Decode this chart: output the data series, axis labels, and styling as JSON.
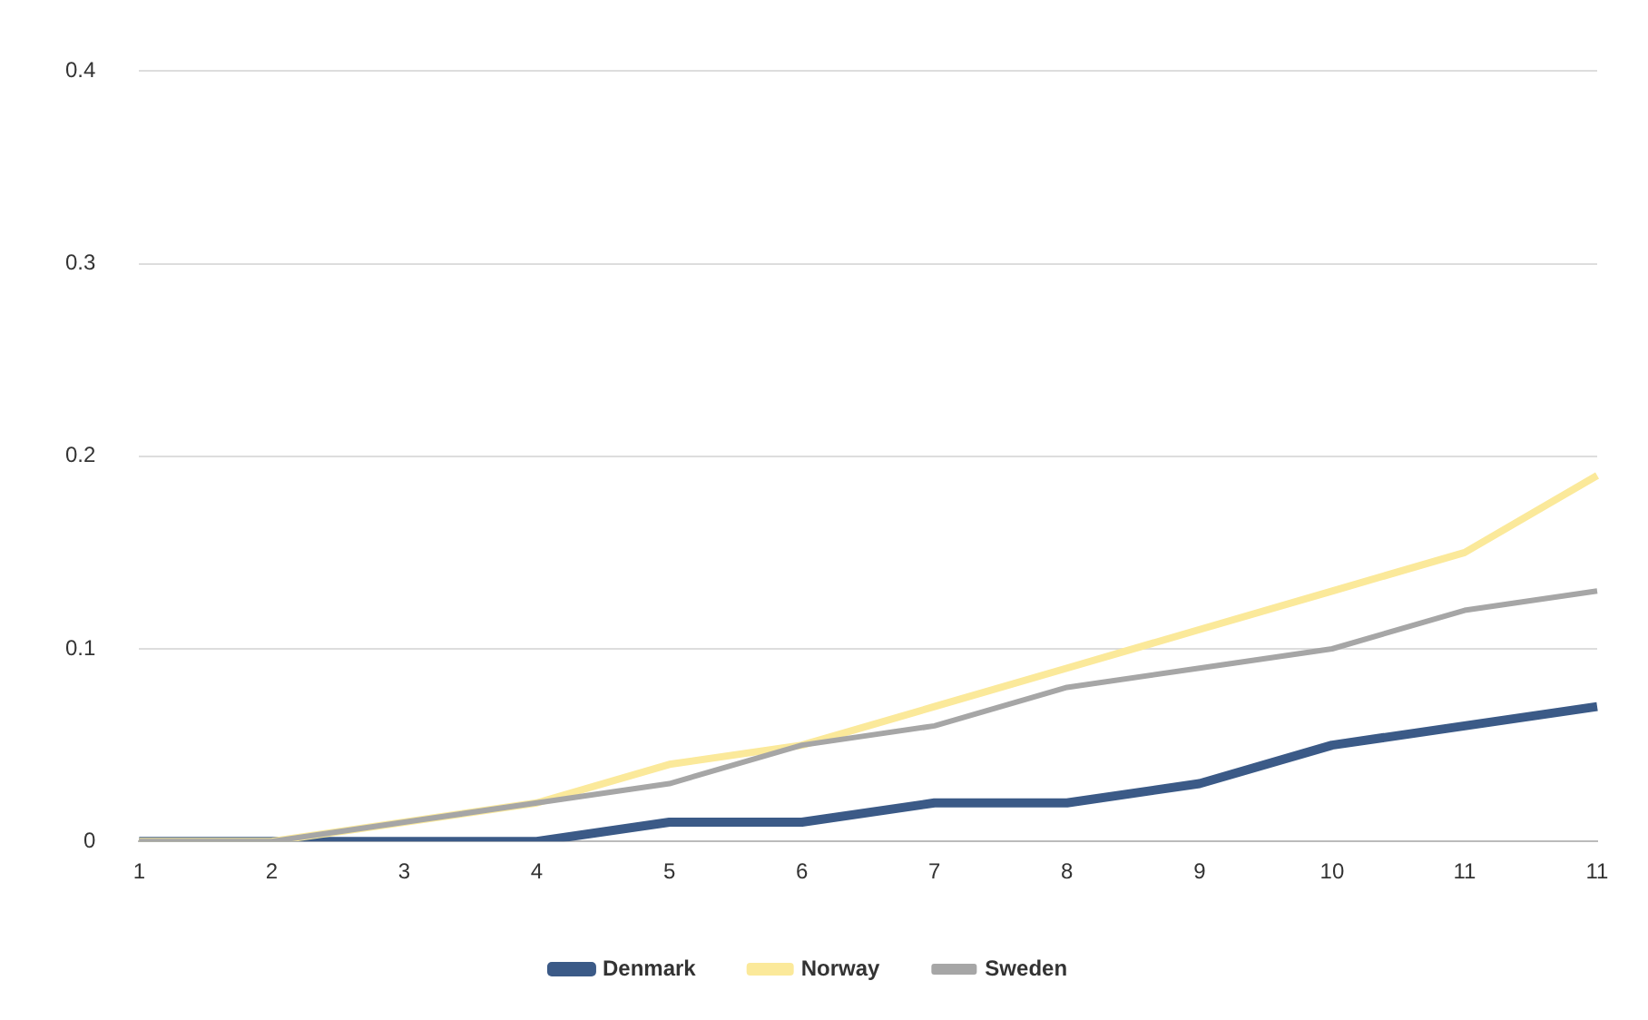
{
  "chart_data": {
    "type": "line",
    "categories": [
      "1",
      "2",
      "3",
      "4",
      "5",
      "6",
      "7",
      "8",
      "9",
      "10",
      "11",
      "11"
    ],
    "series": [
      {
        "name": "Denmark",
        "color": "#3b5a87",
        "values": [
          0,
          0,
          0,
          0,
          0.01,
          0.01,
          0.02,
          0.02,
          0.03,
          0.05,
          0.06,
          0.07
        ]
      },
      {
        "name": "Norway",
        "color": "#fbe99a",
        "values": [
          0,
          0,
          0.01,
          0.02,
          0.04,
          0.05,
          0.07,
          0.09,
          0.11,
          0.13,
          0.15,
          0.19
        ]
      },
      {
        "name": "Sweden",
        "color": "#a6a6a6",
        "values": [
          0,
          0,
          0.01,
          0.02,
          0.03,
          0.05,
          0.06,
          0.08,
          0.09,
          0.1,
          0.12,
          0.13
        ]
      }
    ],
    "ylim": [
      0,
      0.4
    ],
    "yticks": [
      0,
      0.1,
      0.2,
      0.3,
      0.4
    ],
    "grid": "y",
    "legend": "bottom",
    "marker": "none",
    "line_style": "solid"
  }
}
